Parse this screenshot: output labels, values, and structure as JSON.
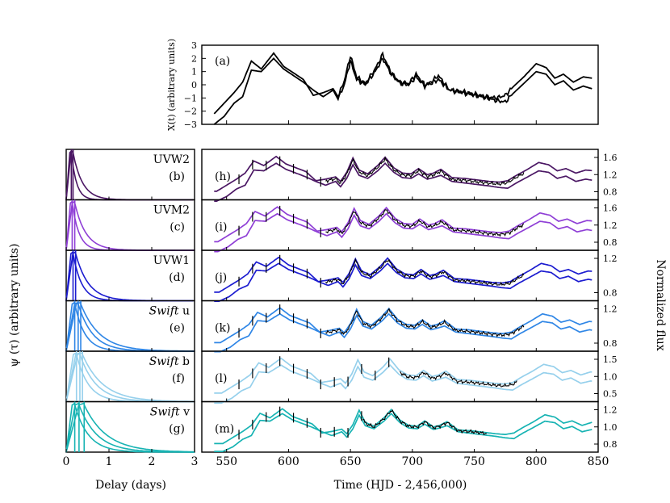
{
  "panel_a": {
    "tag": "(a)",
    "ylabel": "X(t) (arbitrary units)",
    "yticks": [
      "3",
      "2",
      "1",
      "0",
      "−1",
      "−2",
      "−3"
    ]
  },
  "kernel_axis": {
    "ylabel": "ψ (τ) (arbitrary units)",
    "xlabel": "Delay (days)",
    "xticks": [
      "0",
      "1",
      "2",
      "3"
    ]
  },
  "lc_axis": {
    "ylabel": "Normalized flux",
    "xlabel": "Time (HJD - 2,456,000)",
    "xticks": [
      "550",
      "600",
      "650",
      "700",
      "750",
      "800",
      "850"
    ]
  },
  "bands": [
    {
      "key": "uvw2",
      "name": "UVW2",
      "italic": "",
      "kernel_tag": "(b)",
      "lc_tag": "(h)",
      "color": "#4b1764",
      "yticks": [
        "1.6",
        "1.2",
        "0.8"
      ]
    },
    {
      "key": "uvm2",
      "name": "UVM2",
      "italic": "",
      "kernel_tag": "(c)",
      "lc_tag": "(i)",
      "color": "#8f3fd6",
      "yticks": [
        "1.6",
        "1.2",
        "0.8"
      ]
    },
    {
      "key": "uvw1",
      "name": "UVW1",
      "italic": "",
      "kernel_tag": "(d)",
      "lc_tag": "(j)",
      "color": "#1c1cd0",
      "yticks": [
        "1.2",
        "0.8"
      ]
    },
    {
      "key": "u",
      "name": "u",
      "italic": "Swift",
      "kernel_tag": "(e)",
      "lc_tag": "(k)",
      "color": "#2f86e6",
      "yticks": [
        "1.2",
        "0.8"
      ]
    },
    {
      "key": "b",
      "name": "b",
      "italic": "Swift",
      "kernel_tag": "(f)",
      "lc_tag": "(l)",
      "color": "#96d0ec",
      "yticks": [
        "1.5",
        "1.0",
        "0.5"
      ]
    },
    {
      "key": "v",
      "name": "v",
      "italic": "Swift",
      "kernel_tag": "(g)",
      "lc_tag": "(m)",
      "color": "#17b3b3",
      "yticks": [
        "1.2",
        "1.0",
        "0.8"
      ]
    }
  ],
  "chart_data": {
    "type": "line",
    "title": "",
    "driving_x": [
      540,
      548,
      556,
      563,
      570,
      578,
      588,
      596,
      604,
      612,
      620,
      628,
      636,
      640,
      645,
      650,
      655,
      662,
      670,
      676,
      683,
      690,
      697,
      703,
      710,
      715,
      721,
      730,
      740,
      750,
      760,
      768,
      775,
      782,
      790,
      800,
      808,
      815,
      822,
      830,
      838,
      845
    ],
    "driving_series": [
      {
        "name": "X(t) upper",
        "values": [
          -2.2,
          -1.4,
          -0.6,
          0.2,
          1.8,
          1.2,
          2.4,
          1.4,
          0.9,
          0.4,
          -0.8,
          -0.6,
          -0.3,
          -0.9,
          0.3,
          2.2,
          0.6,
          0.1,
          1.2,
          2.3,
          0.9,
          0.2,
          0.1,
          0.8,
          0.0,
          0.2,
          0.7,
          -0.4,
          -0.5,
          -0.7,
          -0.9,
          -1.0,
          -0.8,
          -0.1,
          0.6,
          1.6,
          1.3,
          0.5,
          0.8,
          0.2,
          0.6,
          0.5
        ]
      },
      {
        "name": "X(t) lower",
        "values": [
          -3.0,
          -2.4,
          -1.4,
          -0.9,
          1.1,
          1.0,
          2.0,
          1.2,
          0.7,
          0.2,
          -0.4,
          -0.9,
          -0.4,
          -1.1,
          0.0,
          1.8,
          0.4,
          0.0,
          1.0,
          2.0,
          0.8,
          0.1,
          0.0,
          0.6,
          -0.1,
          0.1,
          0.4,
          -0.4,
          -0.6,
          -0.8,
          -1.0,
          -1.2,
          -1.3,
          -0.6,
          0.1,
          1.0,
          0.8,
          0.0,
          0.3,
          -0.4,
          -0.1,
          -0.3
        ]
      }
    ],
    "driving_ylim": [
      -3,
      3
    ],
    "lightcurve_xlim": [
      530,
      850
    ],
    "kernel_xlim": [
      0,
      3
    ],
    "data_window": [
      [
        630,
        790
      ],
      [
        630,
        790
      ],
      [
        630,
        790
      ],
      [
        630,
        790
      ],
      [
        690,
        785
      ],
      [
        660,
        760
      ]
    ],
    "model_offsets": [
      0.25,
      0.25,
      0.2,
      0.2,
      0.25,
      0.12
    ],
    "kernel_peaks": [
      [
        0.12,
        0.16
      ],
      [
        0.14,
        0.2
      ],
      [
        0.16,
        0.22
      ],
      [
        0.2,
        0.28,
        0.34
      ],
      [
        0.24,
        0.32,
        0.38
      ],
      [
        0.2,
        0.3,
        0.42
      ]
    ],
    "xlabel": "Time (HJD - 2,456,000)",
    "ylabel": "Normalized flux"
  }
}
